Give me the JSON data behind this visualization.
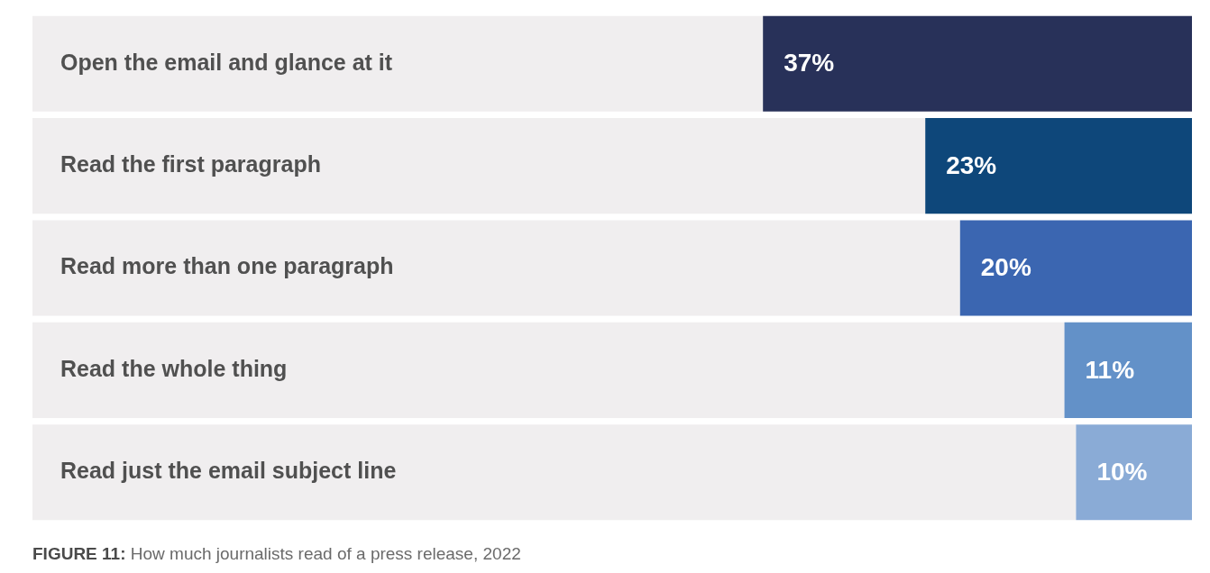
{
  "chart_data": {
    "type": "bar",
    "orientation": "horizontal",
    "stacked": true,
    "categories": [
      "Open the email and glance at it",
      "Read the first paragraph",
      "Read more than one paragraph",
      "Read the whole thing",
      "Read just the email subject line"
    ],
    "series": [
      {
        "values": [
          37,
          23,
          20,
          11,
          10
        ],
        "colors": [
          "#283159",
          "#0e477a",
          "#3b66b1",
          "#6391c8",
          "#8aabd6"
        ],
        "value_labels": [
          "37%",
          "23%",
          "20%",
          "11%",
          "10%"
        ]
      },
      {
        "values": [
          63,
          77,
          80,
          89,
          90
        ],
        "color": "#f0eeef"
      }
    ],
    "xlim": [
      100,
      0
    ],
    "annotations": [
      "FIGURE 11: How much journalists read of a press release, 2022"
    ]
  }
}
